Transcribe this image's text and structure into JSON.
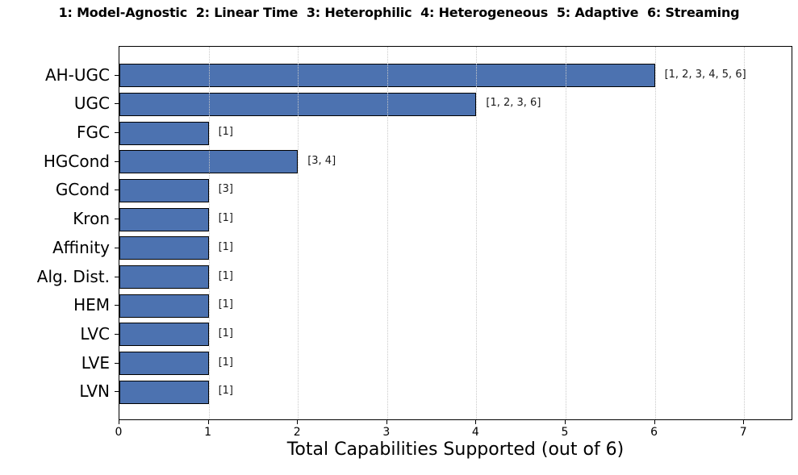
{
  "chart_data": {
    "type": "bar",
    "orientation": "horizontal",
    "title": "1: Model-Agnostic  2: Linear Time  3: Heterophilic  4: Heterogeneous  5: Adaptive  6: Streaming",
    "xlabel": "Total Capabilities Supported (out of 6)",
    "ylabel": "",
    "categories": [
      "AH-UGC",
      "UGC",
      "FGC",
      "HGCond",
      "GCond",
      "Kron",
      "Affinity",
      "Alg. Dist.",
      "HEM",
      "LVC",
      "LVE",
      "LVN"
    ],
    "values": [
      6,
      4,
      1,
      2,
      1,
      1,
      1,
      1,
      1,
      1,
      1,
      1
    ],
    "annotations": [
      "[1, 2, 3, 4, 5, 6]",
      "[1, 2, 3, 6]",
      "[1]",
      "[3, 4]",
      "[3]",
      "[1]",
      "[1]",
      "[1]",
      "[1]",
      "[1]",
      "[1]",
      "[1]"
    ],
    "xticks": [
      0,
      1,
      2,
      3,
      4,
      5,
      6,
      7
    ],
    "xlim": [
      0,
      7.55
    ],
    "grid": "vertical-dotted",
    "legend_position": "none",
    "bar_color": "#4C72B0",
    "bar_edge_color": "#000000",
    "grid_color": "#c9c9c9",
    "background_color": "#ffffff"
  }
}
